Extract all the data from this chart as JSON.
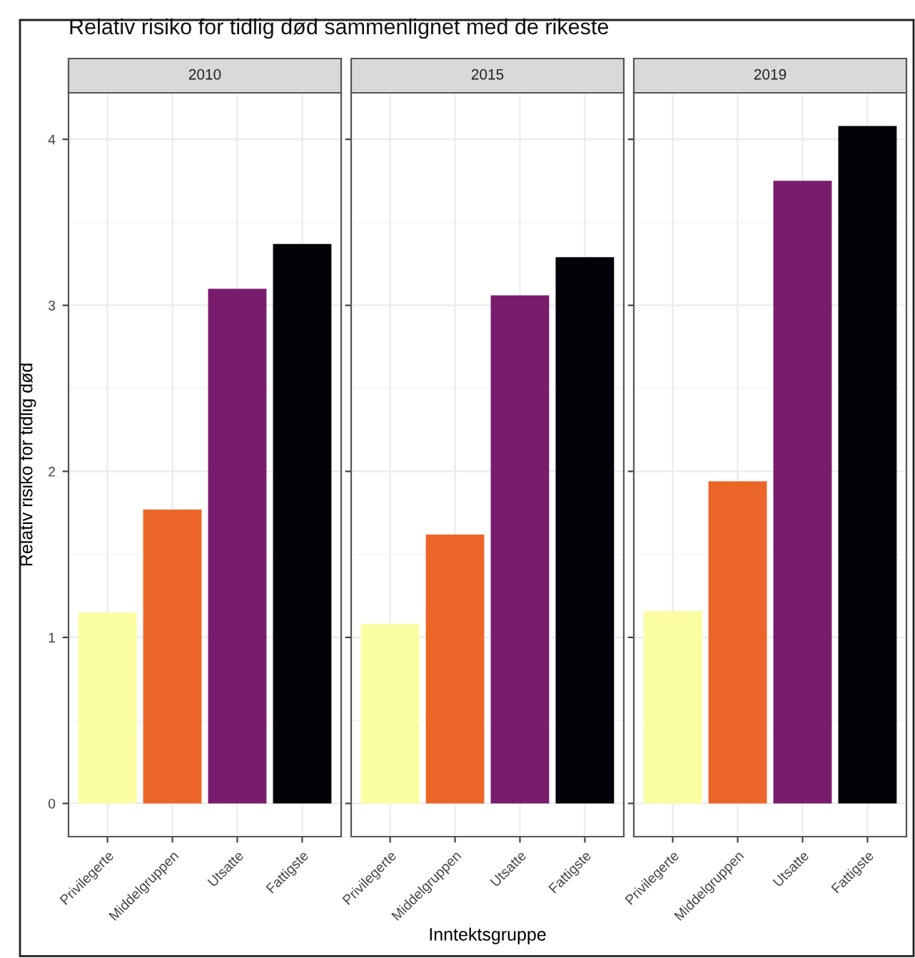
{
  "chart_data": [
    {
      "type": "bar",
      "title": "2010",
      "annotations": [
        "Relativ risiko for tidlig død sammenlignet med de rikeste"
      ],
      "ylabel": "Relativ risiko for tidlig død",
      "categories": [
        "Privilegerte",
        "Middelgruppen",
        "Utsatte",
        "Fattigste"
      ],
      "values": [
        1.15,
        1.77,
        3.1,
        3.37
      ],
      "colors": [
        "#fbfda3",
        "#eb6628",
        "#7a1c6d",
        "#030209"
      ],
      "ylim": [
        -0.2,
        4.28
      ],
      "yticks": [
        0,
        1,
        2,
        3,
        4
      ],
      "grid": true
    },
    {
      "type": "bar",
      "title": "2015",
      "xlabel": "Inntektsgruppe",
      "categories": [
        "Privilegerte",
        "Middelgruppen",
        "Utsatte",
        "Fattigste"
      ],
      "values": [
        1.08,
        1.62,
        3.06,
        3.29
      ],
      "colors": [
        "#fbfda3",
        "#eb6628",
        "#7a1c6d",
        "#030209"
      ],
      "ylim": [
        -0.2,
        4.28
      ],
      "yticks": [
        0,
        1,
        2,
        3,
        4
      ],
      "grid": true,
      "tick_labels": "x"
    },
    {
      "type": "bar",
      "title": "2019",
      "categories": [
        "Privilegerte",
        "Middelgruppen",
        "Utsatte",
        "Fattigste"
      ],
      "values": [
        1.16,
        1.94,
        3.75,
        4.08
      ],
      "colors": [
        "#fbfda3",
        "#eb6628",
        "#7a1c6d",
        "#030209"
      ],
      "ylim": [
        -0.2,
        4.28
      ],
      "yticks": [
        0,
        1,
        2,
        3,
        4
      ],
      "grid": true,
      "tick_labels": "x"
    }
  ]
}
